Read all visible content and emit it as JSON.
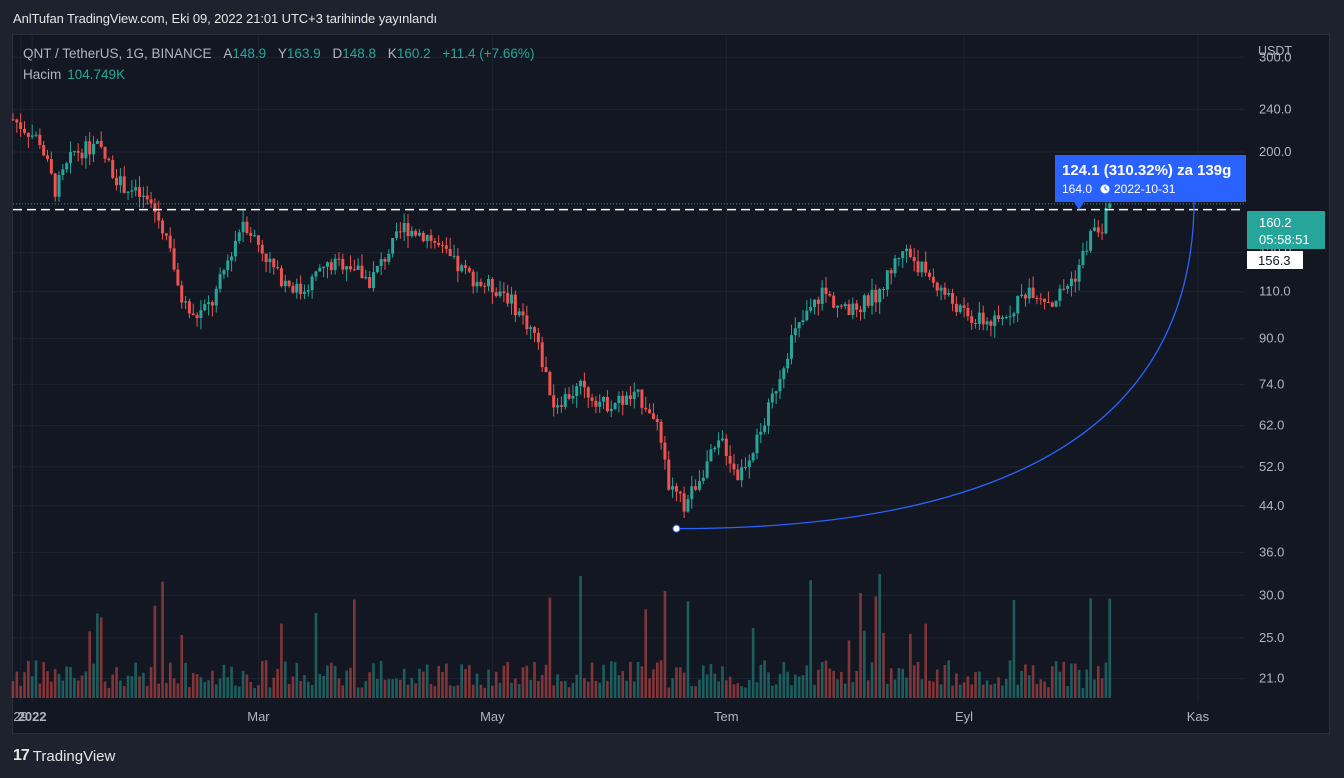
{
  "header": {
    "published": "AnlTufan TradingView.com, Eki 09, 2022 21:01 UTC+3 tarihinde yayınlandı"
  },
  "legend": {
    "symbol": "QNT / TetherUS, 1G, BINANCE",
    "open_label": "A",
    "open_value": "148.9",
    "high_label": "Y",
    "high_value": "163.9",
    "low_label": "D",
    "low_value": "148.8",
    "close_label": "K",
    "close_value": "160.2",
    "change": "+11.4 (+7.66%)",
    "volume_label": "Hacim",
    "volume_value": "104.749K"
  },
  "axis": {
    "unit": "USDT",
    "price_ticks": [
      "300.0",
      "240.0",
      "200.0",
      "130.0",
      "110.0",
      "90.0",
      "74.0",
      "62.0",
      "52.0",
      "44.0",
      "36.0",
      "30.0",
      "25.0",
      "21.0"
    ],
    "date_ticks": [
      "29",
      "2022",
      "Mar",
      "May",
      "Tem",
      "Eyl",
      "Kas"
    ]
  },
  "price_tags": {
    "last_price": "160.2",
    "countdown": "05:58:51",
    "level": "156.3"
  },
  "measure": {
    "label": "124.1 (310.32%) za 139g",
    "sub_value": "164.0",
    "sub_date": "2022-10-31"
  },
  "footer": {
    "brand": "TradingView",
    "logo": "17"
  },
  "colors": {
    "up": "#26a69a",
    "down": "#ef5350",
    "measure": "#2962ff",
    "last_tag": "#26a69a",
    "background": "#131722"
  },
  "chart_data": {
    "type": "candlestick",
    "title": "QNT / TetherUS, 1G, BINANCE",
    "y_scale": "log",
    "ylim": [
      19,
      330
    ],
    "x_range": [
      "2021-12-27",
      "2022-11-13"
    ],
    "horizontal_level": 156.3,
    "last_close": 160.2,
    "curve_from": {
      "date": "2022-06-18",
      "value": 39.9
    },
    "curve_to": {
      "date": "2022-10-31",
      "value": 164.0
    },
    "anchors": [
      {
        "date": "2021-12-27",
        "close": 230
      },
      {
        "date": "2022-01-03",
        "close": 210
      },
      {
        "date": "2022-01-07",
        "close": 170
      },
      {
        "date": "2022-01-12",
        "close": 200
      },
      {
        "date": "2022-01-18",
        "close": 205
      },
      {
        "date": "2022-01-24",
        "close": 175
      },
      {
        "date": "2022-02-01",
        "close": 160
      },
      {
        "date": "2022-02-06",
        "close": 135
      },
      {
        "date": "2022-02-08",
        "close": 110
      },
      {
        "date": "2022-02-12",
        "close": 98
      },
      {
        "date": "2022-02-17",
        "close": 105
      },
      {
        "date": "2022-02-25",
        "close": 150
      },
      {
        "date": "2022-03-06",
        "close": 118
      },
      {
        "date": "2022-03-12",
        "close": 110
      },
      {
        "date": "2022-03-18",
        "close": 122
      },
      {
        "date": "2022-03-24",
        "close": 125
      },
      {
        "date": "2022-03-30",
        "close": 115
      },
      {
        "date": "2022-04-08",
        "close": 145
      },
      {
        "date": "2022-04-14",
        "close": 140
      },
      {
        "date": "2022-04-22",
        "close": 122
      },
      {
        "date": "2022-04-28",
        "close": 114
      },
      {
        "date": "2022-05-04",
        "close": 110
      },
      {
        "date": "2022-05-12",
        "close": 92
      },
      {
        "date": "2022-05-17",
        "close": 68
      },
      {
        "date": "2022-05-24",
        "close": 73
      },
      {
        "date": "2022-05-30",
        "close": 68
      },
      {
        "date": "2022-06-08",
        "close": 70
      },
      {
        "date": "2022-06-12",
        "close": 66
      },
      {
        "date": "2022-06-16",
        "close": 48
      },
      {
        "date": "2022-06-20",
        "close": 44
      },
      {
        "date": "2022-06-26",
        "close": 53
      },
      {
        "date": "2022-06-30",
        "close": 58
      },
      {
        "date": "2022-07-04",
        "close": 50
      },
      {
        "date": "2022-07-10",
        "close": 60
      },
      {
        "date": "2022-07-18",
        "close": 90
      },
      {
        "date": "2022-07-26",
        "close": 110
      },
      {
        "date": "2022-08-02",
        "close": 100
      },
      {
        "date": "2022-08-10",
        "close": 110
      },
      {
        "date": "2022-08-16",
        "close": 133
      },
      {
        "date": "2022-08-24",
        "close": 115
      },
      {
        "date": "2022-09-02",
        "close": 98
      },
      {
        "date": "2022-09-10",
        "close": 96
      },
      {
        "date": "2022-09-18",
        "close": 112
      },
      {
        "date": "2022-09-24",
        "close": 105
      },
      {
        "date": "2022-09-30",
        "close": 118
      },
      {
        "date": "2022-10-04",
        "close": 140
      },
      {
        "date": "2022-10-07",
        "close": 145
      },
      {
        "date": "2022-10-09",
        "close": 160.2
      }
    ]
  }
}
